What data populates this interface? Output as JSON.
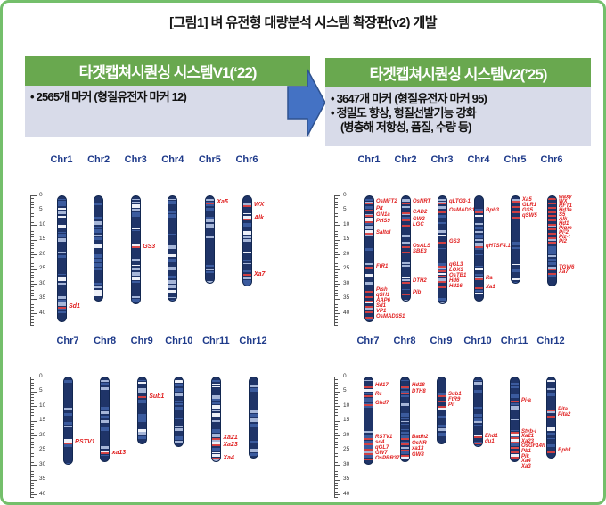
{
  "title": "[그림1] 벼 유전형 대량분석 시스템 확장판(v2) 개발",
  "panels": {
    "v1": {
      "header": "타겟캡쳐시퀀싱 시스템V1(‘22)",
      "lines": [
        "• 2565개 마커 (형질유전자 마커 12)"
      ]
    },
    "v2": {
      "header": "타겟캡쳐시퀀싱 시스템V2(’25)",
      "lines": [
        "• 3647개 마커 (형질유전자 마커 95)",
        "• 정밀도 향상, 형질선발기능 강화",
        "(병충해 저항성, 품질, 수량 등)"
      ]
    }
  },
  "colors": {
    "border_green": "#74bf6b",
    "header_green": "#69a84f",
    "body_gray": "#d8dbe9",
    "arrow_blue": "#4472c4",
    "arrow_outline": "#2f528f",
    "chromosome_navy": "#1f3468",
    "chr_label_blue": "#1e3a8a",
    "gene_label_red": "#e02020"
  },
  "ideograms": {
    "ruler_labels": [
      0,
      5,
      10,
      15,
      20,
      25,
      30,
      35,
      40
    ],
    "groups": [
      {
        "id": "v1-chr1-6",
        "chroms": [
          {
            "name": "Chr1",
            "len": 43,
            "genes": [
              [
                "Sd1",
                37.5
              ]
            ]
          },
          {
            "name": "Chr2",
            "len": 36,
            "genes": []
          },
          {
            "name": "Chr3",
            "len": 37,
            "genes": [
              [
                "GS3",
                17
              ]
            ]
          },
          {
            "name": "Chr4",
            "len": 36,
            "genes": []
          },
          {
            "name": "Chr5",
            "len": 30,
            "genes": [
              [
                "Xa5",
                2
              ]
            ]
          },
          {
            "name": "Chr6",
            "len": 31,
            "genes": [
              [
                "WX",
                3
              ],
              [
                "Alk",
                7.5
              ],
              [
                "Xa7",
                26.5
              ]
            ]
          }
        ]
      },
      {
        "id": "v1-chr7-12",
        "chroms": [
          {
            "name": "Chr7",
            "len": 30,
            "genes": [
              [
                "RSTV1",
                22
              ]
            ]
          },
          {
            "name": "Chr8",
            "len": 29,
            "genes": [
              [
                "xa13",
                25.5
              ]
            ]
          },
          {
            "name": "Chr9",
            "len": 23,
            "genes": [
              [
                "Sub1",
                6.5
              ]
            ]
          },
          {
            "name": "Chr10",
            "len": 24,
            "genes": []
          },
          {
            "name": "Chr11",
            "len": 29,
            "genes": [
              [
                "Xa21",
                20.5
              ],
              [
                "Xa23",
                22.8
              ],
              [
                "Xa4",
                27.3
              ]
            ]
          },
          {
            "name": "Chr12",
            "len": 28,
            "genes": []
          }
        ]
      },
      {
        "id": "v2-chr1-6",
        "chroms": [
          {
            "name": "Chr1",
            "len": 43,
            "genes": [
              [
                "OsMFT2",
                2
              ],
              [
                "Pit",
                4.5
              ],
              [
                "GN1a",
                6.5
              ],
              [
                "PHS9",
                8.5
              ],
              [
                "Saltol",
                12.5
              ],
              [
                "FtR1",
                24
              ],
              [
                "Pish",
                32
              ],
              [
                "qSH1",
                33.8
              ],
              [
                "AAP6",
                35.6
              ],
              [
                "Sd1",
                37.4
              ],
              [
                "VP1",
                39.2
              ],
              [
                "OsMADS51",
                41
              ]
            ]
          },
          {
            "name": "Chr2",
            "len": 36,
            "genes": [
              [
                "OsNRT",
                2
              ],
              [
                "CAD2",
                5.5
              ],
              [
                "GW2",
                8
              ],
              [
                "LGC",
                9.8
              ],
              [
                "OsALS",
                17
              ],
              [
                "SBE3",
                18.8
              ],
              [
                "DTH2",
                29
              ],
              [
                "Pib",
                33
              ]
            ]
          },
          {
            "name": "Chr3",
            "len": 37,
            "genes": [
              [
                "qLTG3-1",
                2
              ],
              [
                "OsMADS1",
                5
              ],
              [
                "GS3",
                15.5
              ],
              [
                "qGL3",
                23.5
              ],
              [
                "LOX3",
                25.3
              ],
              [
                "OsTB1",
                27.1
              ],
              [
                "Hd6",
                28.9
              ],
              [
                "Hd16",
                30.7
              ]
            ]
          },
          {
            "name": "Chr4",
            "len": 36,
            "genes": [
              [
                "Bph3",
                5
              ],
              [
                "qHTSF4.1",
                17
              ],
              [
                "Ra",
                28
              ],
              [
                "Xa1",
                31
              ]
            ]
          },
          {
            "name": "Chr5",
            "len": 30,
            "genes": [
              [
                "Xa5",
                1.5
              ],
              [
                "GLR1",
                3.3
              ],
              [
                "GS5",
                5.1
              ],
              [
                "qSW5",
                6.9
              ]
            ]
          },
          {
            "name": "Chr6",
            "len": 31,
            "genes": [
              [
                "waxy",
                0.5
              ],
              [
                "WX",
                2
              ],
              [
                "RFT1",
                3.5
              ],
              [
                "Hd3a",
                5
              ],
              [
                "S5",
                6.5
              ],
              [
                "Alk",
                8
              ],
              [
                "Hd1",
                9.5
              ],
              [
                "Pigm",
                11
              ],
              [
                "Pi-2",
                12.5
              ],
              [
                "Piz-t",
                14
              ],
              [
                "Pi2",
                15.5
              ],
              [
                "TGW6",
                24.5
              ],
              [
                "Xa7",
                26
              ]
            ]
          }
        ]
      },
      {
        "id": "v2-chr7-12",
        "chroms": [
          {
            "name": "Chr7",
            "len": 30,
            "genes": [
              [
                "Hd17",
                3
              ],
              [
                "Rc",
                6
              ],
              [
                "Ghd7",
                9
              ],
              [
                "RSTV1",
                20.5
              ],
              [
                "sd4",
                22.3
              ],
              [
                "qGL7",
                24.1
              ],
              [
                "GW7",
                25.9
              ],
              [
                "OsPRR37",
                27.7
              ]
            ]
          },
          {
            "name": "Chr8",
            "len": 29,
            "genes": [
              [
                "Hd18",
                3
              ],
              [
                "DTH8",
                5
              ],
              [
                "Badh2",
                20.5
              ],
              [
                "OsNR",
                22.5
              ],
              [
                "xa13",
                24.5
              ],
              [
                "GW8",
                26.5
              ]
            ]
          },
          {
            "name": "Chr9",
            "len": 23,
            "genes": [
              [
                "Sub1",
                6
              ],
              [
                "FtR9",
                7.8
              ],
              [
                "Pii",
                9.6
              ]
            ]
          },
          {
            "name": "Chr10",
            "len": 24,
            "genes": [
              [
                "Ehd1",
                20
              ],
              [
                "du1",
                22
              ]
            ]
          },
          {
            "name": "Chr11",
            "len": 29,
            "genes": [
              [
                "Pi-a",
                8
              ],
              [
                "Stvb-i",
                18.5
              ],
              [
                "Xa21",
                20.2
              ],
              [
                "Xa23",
                21.9
              ],
              [
                "OsGF14h",
                23.6
              ],
              [
                "Pb1",
                25.3
              ],
              [
                "Pik",
                27
              ],
              [
                "Xa4",
                28.7
              ],
              [
                "Xa3",
                30.4
              ]
            ]
          },
          {
            "name": "Chr12",
            "len": 28,
            "genes": [
              [
                "Pita",
                11
              ],
              [
                "Pita2",
                13
              ],
              [
                "Bph1",
                25
              ]
            ]
          }
        ]
      }
    ]
  }
}
